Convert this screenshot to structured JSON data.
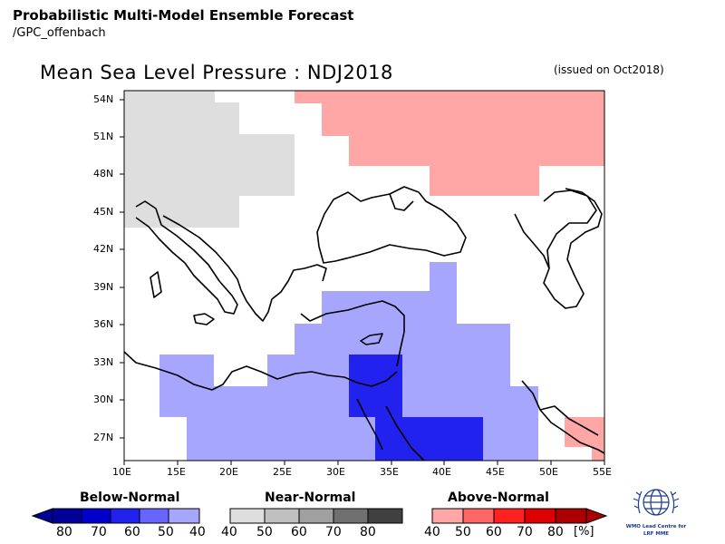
{
  "header": {
    "product": "Probabilistic Multi-Model Ensemble Forecast",
    "source": "/GPC_offenbach",
    "title": "Mean Sea Level Pressure : NDJ2018",
    "issued": "(issued on Oct2018)"
  },
  "axes": {
    "lat_labels": [
      "54N",
      "51N",
      "48N",
      "45N",
      "42N",
      "39N",
      "36N",
      "33N",
      "30N",
      "27N"
    ],
    "lon_labels": [
      "10E",
      "15E",
      "20E",
      "25E",
      "30E",
      "35E",
      "40E",
      "45E",
      "50E",
      "55E"
    ],
    "lat_range": [
      25.5,
      55.5
    ],
    "lon_range": [
      10,
      55
    ]
  },
  "colors": {
    "below_40": "#a6a6ff",
    "below_50": "#a6a6ff",
    "below_60": "#2222ee",
    "below_70": "#0000cc",
    "below_80": "#000099",
    "near_40": "#dedede",
    "near_50": "#c0c0c0",
    "near_60": "#a0a0a0",
    "near_70": "#707070",
    "near_80": "#404040",
    "above_40": "#ffa6a6",
    "above_50": "#ff6666",
    "above_60": "#ff2020",
    "above_70": "#dd0000",
    "above_80": "#aa0000"
  },
  "legend": {
    "below": {
      "title": "Below-Normal",
      "values": [
        "80",
        "70",
        "60",
        "50",
        "40"
      ]
    },
    "near": {
      "title": "Near-Normal",
      "values": [
        "40",
        "50",
        "60",
        "70",
        "80"
      ]
    },
    "above": {
      "title": "Above-Normal",
      "values": [
        "40",
        "50",
        "60",
        "70",
        "80"
      ]
    },
    "unit": "[%]"
  },
  "logo": {
    "name": "wmo-emblem",
    "caption_1": "WMO Lead Centre for",
    "caption_2": "LRF MME"
  }
}
